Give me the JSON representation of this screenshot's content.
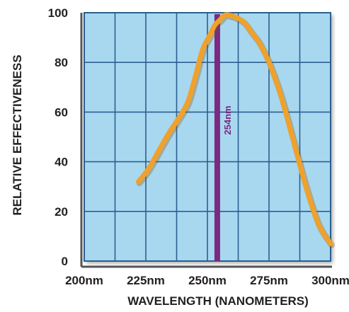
{
  "chart_data": {
    "type": "line",
    "xlabel": "WAVELENGTH (NANOMETERS)",
    "ylabel": "RELATIVE EFFECTIVENESS",
    "x_ticks": [
      "200nm",
      "225nm",
      "250nm",
      "275nm",
      "300nm"
    ],
    "y_ticks": [
      "0",
      "20",
      "40",
      "60",
      "80",
      "100"
    ],
    "xlim": [
      200,
      300
    ],
    "ylim": [
      0,
      100
    ],
    "grid": true,
    "series": [
      {
        "color": "#f0a12b",
        "x": [
          222,
          226,
          230,
          234,
          238,
          242,
          245,
          248,
          251,
          253,
          255,
          257,
          259,
          262,
          265,
          268,
          271,
          275,
          280,
          285,
          290,
          295,
          300
        ],
        "y": [
          32,
          37,
          44,
          51,
          57,
          64,
          74,
          85,
          91,
          95,
          97,
          99,
          99,
          98,
          96,
          92,
          88,
          80,
          66,
          48,
          30,
          15,
          7
        ]
      }
    ],
    "annotations": [
      {
        "type": "vline",
        "x": 254,
        "label": "254nm",
        "color": "#7b2a7f"
      }
    ],
    "colors": {
      "plot_background": "#a8d8f0",
      "grid": "#2b5f8f",
      "axis": "#555555"
    }
  }
}
